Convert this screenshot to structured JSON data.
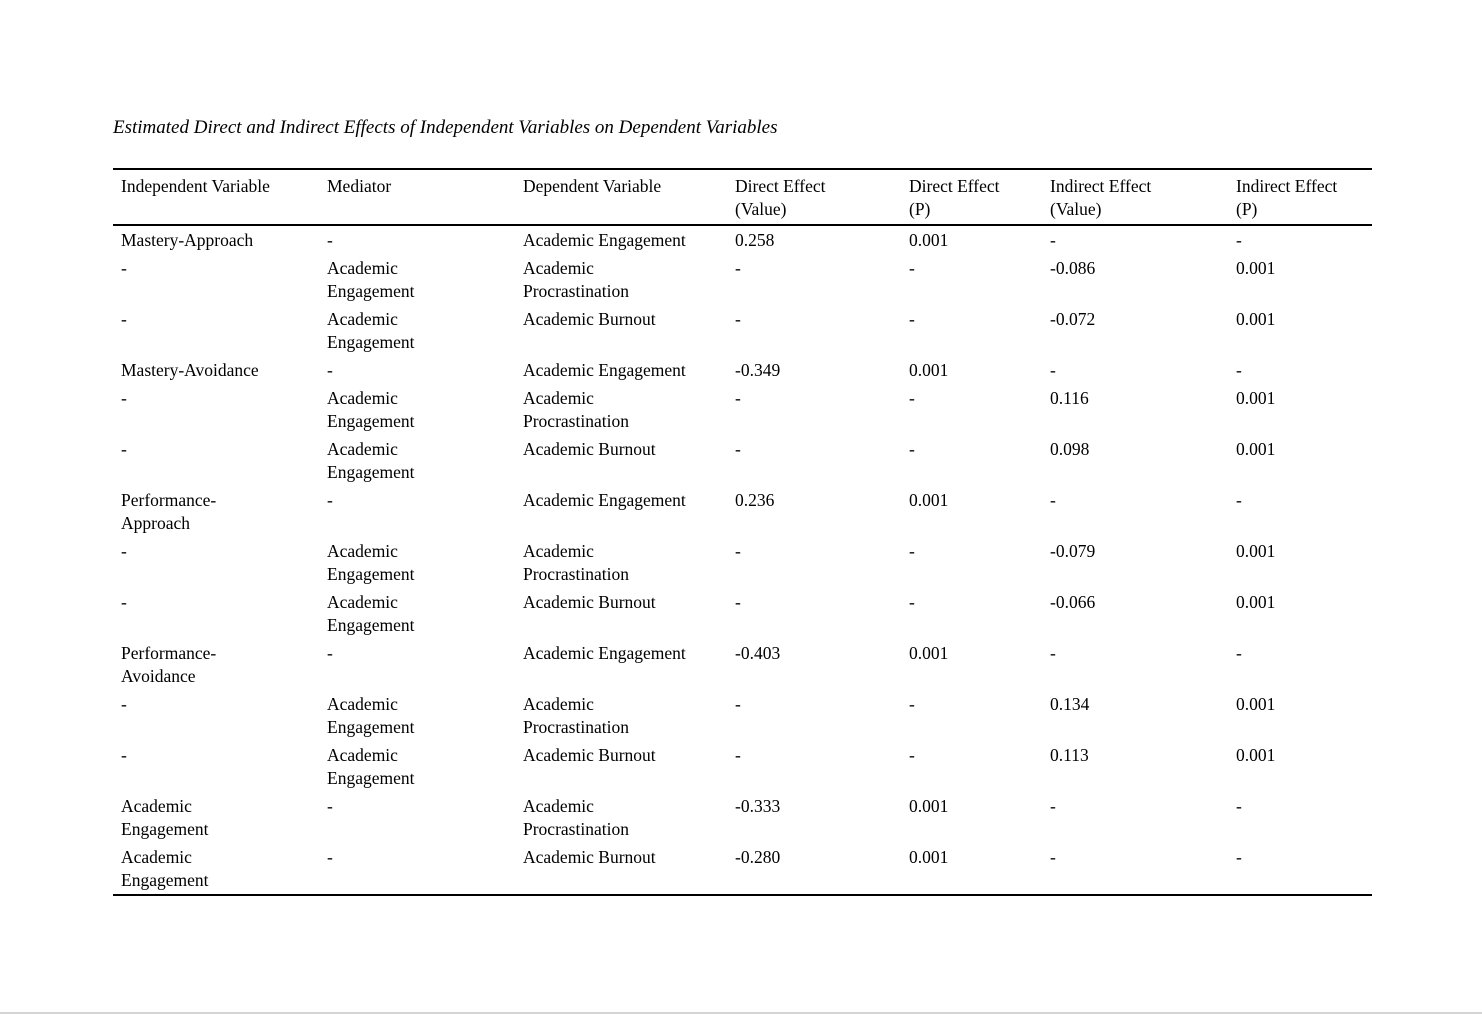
{
  "page": {
    "title": "Estimated Direct and Indirect Effects of Independent Variables on Dependent Variables"
  },
  "table": {
    "columns": [
      {
        "label": "Independent Variable"
      },
      {
        "label": "Mediator"
      },
      {
        "label": "Dependent Variable"
      },
      {
        "label": "Direct Effect\n(Value)"
      },
      {
        "label": "Direct Effect\n(P)"
      },
      {
        "label": "Indirect Effect\n(Value)"
      },
      {
        "label": "Indirect Effect\n(P)"
      }
    ],
    "rows": [
      [
        "Mastery-Approach",
        "-",
        "Academic Engagement",
        "0.258",
        "0.001",
        "-",
        "-"
      ],
      [
        "-",
        "Academic\nEngagement",
        "Academic\nProcrastination",
        "-",
        "-",
        "-0.086",
        "0.001"
      ],
      [
        "-",
        "Academic\nEngagement",
        "Academic Burnout",
        "-",
        "-",
        "-0.072",
        "0.001"
      ],
      [
        "Mastery-Avoidance",
        "-",
        "Academic Engagement",
        "-0.349",
        "0.001",
        "-",
        "-"
      ],
      [
        "-",
        "Academic\nEngagement",
        "Academic\nProcrastination",
        "-",
        "-",
        "0.116",
        "0.001"
      ],
      [
        "-",
        "Academic\nEngagement",
        "Academic Burnout",
        "-",
        "-",
        "0.098",
        "0.001"
      ],
      [
        "Performance-\nApproach",
        "-",
        "Academic Engagement",
        "0.236",
        "0.001",
        "-",
        "-"
      ],
      [
        "-",
        "Academic\nEngagement",
        "Academic\nProcrastination",
        "-",
        "-",
        "-0.079",
        "0.001"
      ],
      [
        "-",
        "Academic\nEngagement",
        "Academic Burnout",
        "-",
        "-",
        "-0.066",
        "0.001"
      ],
      [
        "Performance-\nAvoidance",
        "-",
        "Academic Engagement",
        "-0.403",
        "0.001",
        "-",
        "-"
      ],
      [
        "-",
        "Academic\nEngagement",
        "Academic\nProcrastination",
        "-",
        "-",
        "0.134",
        "0.001"
      ],
      [
        "-",
        "Academic\nEngagement",
        "Academic Burnout",
        "-",
        "-",
        "0.113",
        "0.001"
      ],
      [
        "Academic\nEngagement",
        "-",
        "Academic\nProcrastination",
        "-0.333",
        "0.001",
        "-",
        "-"
      ],
      [
        "Academic\nEngagement",
        "-",
        "Academic Burnout",
        "-0.280",
        "0.001",
        "-",
        "-"
      ]
    ]
  }
}
